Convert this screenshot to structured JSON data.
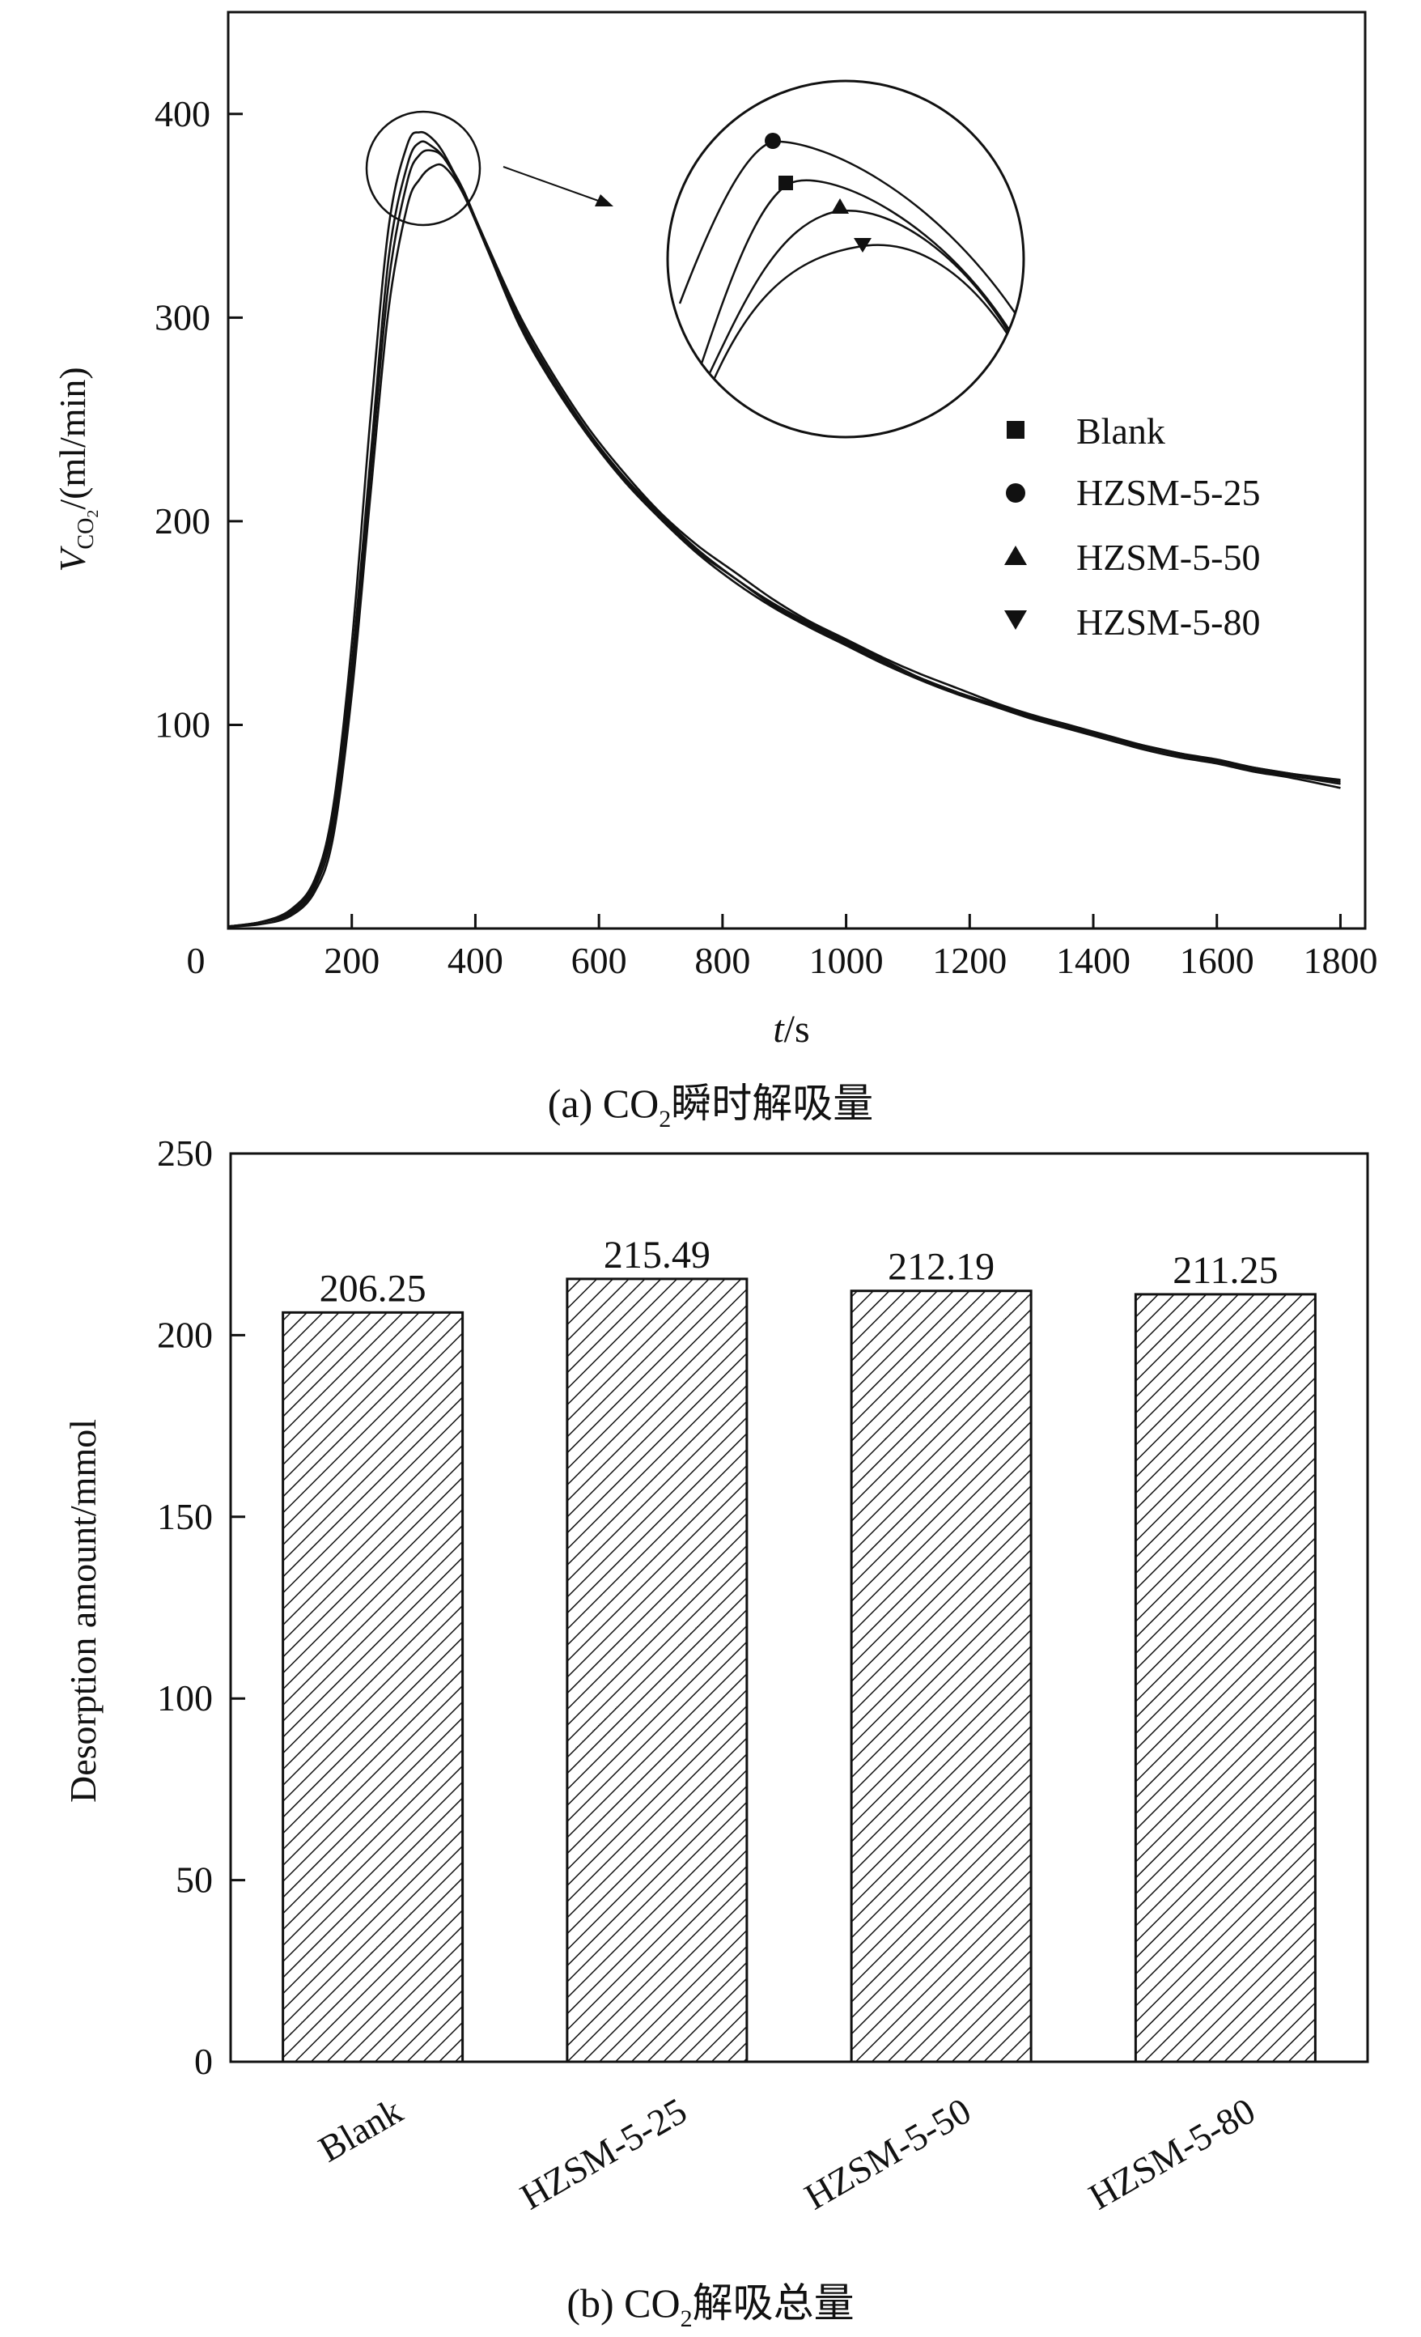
{
  "chart_data": [
    {
      "type": "line",
      "caption": {
        "prefix": "(a) CO",
        "sub": "2",
        "suffix": "瞬时解吸量"
      },
      "xlabel": {
        "var": "t",
        "unit": "/s"
      },
      "ylabel": {
        "var": "V",
        "sub": "CO",
        "subsub": "2",
        "unit": "/(ml/min)"
      },
      "xlim": [
        0,
        1840
      ],
      "ylim": [
        0,
        450
      ],
      "xticks": [
        0,
        200,
        400,
        600,
        800,
        1000,
        1200,
        1400,
        1600,
        1800
      ],
      "yticks": [
        100,
        200,
        300,
        400
      ],
      "x_zero_label": "0",
      "legend": [
        "Blank",
        "HZSM-5-25",
        "HZSM-5-50",
        "HZSM-5-80"
      ],
      "series": [
        {
          "name": "Blank",
          "marker": "square",
          "x": [
            0,
            50,
            100,
            140,
            170,
            200,
            230,
            260,
            290,
            310,
            330,
            350,
            380,
            420,
            470,
            520,
            580,
            640,
            700,
            760,
            820,
            880,
            940,
            1000,
            1060,
            1120,
            1180,
            1240,
            1300,
            1360,
            1420,
            1480,
            1540,
            1600,
            1660,
            1720,
            1800
          ],
          "y": [
            1,
            3,
            8,
            22,
            55,
            130,
            230,
            330,
            375,
            386,
            384,
            378,
            362,
            335,
            300,
            273,
            245,
            222,
            203,
            186,
            172,
            160,
            150,
            141,
            132,
            123,
            116,
            110,
            104,
            99,
            94,
            90,
            86,
            82,
            79,
            76,
            72
          ]
        },
        {
          "name": "HZSM-5-25",
          "marker": "circle",
          "x": [
            0,
            50,
            100,
            140,
            170,
            200,
            230,
            260,
            290,
            310,
            330,
            350,
            380,
            420,
            470,
            520,
            580,
            640,
            700,
            760,
            820,
            880,
            940,
            1000,
            1060,
            1120,
            1180,
            1240,
            1300,
            1360,
            1420,
            1480,
            1540,
            1600,
            1660,
            1720,
            1800
          ],
          "y": [
            1,
            3,
            9,
            24,
            60,
            140,
            250,
            345,
            385,
            391,
            388,
            380,
            362,
            335,
            302,
            275,
            247,
            224,
            204,
            188,
            175,
            162,
            151,
            142,
            133,
            125,
            118,
            111,
            105,
            100,
            95,
            90,
            86,
            83,
            79,
            76,
            73
          ]
        },
        {
          "name": "HZSM-5-50",
          "marker": "triangle-up",
          "x": [
            0,
            50,
            100,
            140,
            170,
            200,
            230,
            260,
            290,
            310,
            330,
            350,
            380,
            420,
            470,
            520,
            580,
            640,
            700,
            760,
            820,
            880,
            940,
            1000,
            1060,
            1120,
            1180,
            1240,
            1300,
            1360,
            1420,
            1480,
            1540,
            1600,
            1660,
            1720,
            1800
          ],
          "y": [
            1,
            3,
            7,
            20,
            50,
            122,
            222,
            318,
            367,
            380,
            382,
            378,
            363,
            334,
            299,
            271,
            244,
            221,
            202,
            185,
            172,
            159,
            149,
            140,
            131,
            123,
            116,
            110,
            104,
            99,
            94,
            89,
            85,
            82,
            78,
            75,
            71
          ]
        },
        {
          "name": "HZSM-5-80",
          "marker": "triangle-down",
          "x": [
            0,
            50,
            100,
            140,
            170,
            200,
            230,
            260,
            290,
            310,
            330,
            350,
            380,
            420,
            470,
            520,
            580,
            640,
            700,
            760,
            820,
            880,
            940,
            1000,
            1060,
            1120,
            1180,
            1240,
            1300,
            1360,
            1420,
            1480,
            1540,
            1600,
            1660,
            1720,
            1800
          ],
          "y": [
            1,
            2,
            6,
            18,
            45,
            115,
            212,
            305,
            355,
            368,
            374,
            374,
            361,
            333,
            297,
            270,
            243,
            220,
            201,
            184,
            170,
            158,
            148,
            139,
            130,
            122,
            115,
            109,
            103,
            98,
            93,
            88,
            84,
            81,
            77,
            74,
            69
          ]
        }
      ],
      "inset": "zoomed view of peak region (circled)"
    },
    {
      "type": "bar",
      "caption": {
        "prefix": "(b) CO",
        "sub": "2",
        "suffix": "解吸总量"
      },
      "ylabel": "Desorption amount/mmol",
      "categories": [
        "Blank",
        "HZSM-5-25",
        "HZSM-5-50",
        "HZSM-5-80"
      ],
      "values": [
        206.25,
        215.49,
        212.19,
        211.25
      ],
      "value_labels": [
        "206.25",
        "215.49",
        "212.19",
        "211.25"
      ],
      "ylim": [
        0,
        250
      ],
      "yticks": [
        0,
        50,
        100,
        150,
        200,
        250
      ],
      "fill": "diagonal-hatch"
    }
  ],
  "colors": {
    "ink": "#111111",
    "background": "#ffffff"
  }
}
